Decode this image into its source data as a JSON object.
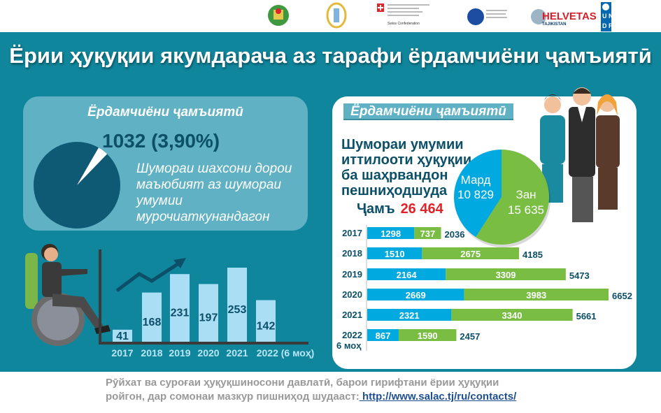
{
  "header": {
    "logos": [
      "tajikistan-emblem",
      "salac-emblem",
      "swiss-confederation",
      "finland-ministry",
      "helvetas",
      "undp"
    ],
    "helvetas_text": "HELVETAS",
    "helvetas_sub": "TAJIKISTAN",
    "undp_text": "UNDP",
    "swiss_text": "Swiss Confederation"
  },
  "title": "Ёрии ҳуқуқии якумдарача аз тарафи ёрдамчиёни ҷамъиятӣ",
  "left_panel": {
    "heading": "Ёрдамчиёни ҷамъиятӣ",
    "value": "1032 (3,90%)",
    "description": "Шумораи шахсони дорои маъюбият аз шумораи умумии мурочиаткунандагон",
    "share_percent": 3.9
  },
  "right_panel": {
    "heading": "Ёрдамчиёни ҷамъиятӣ",
    "description": "Шумораи умумии иттилооти ҳуқуқии ба шаҳрвандон пешниҳодшуда",
    "total_label": "Ҷамъ",
    "total_value": "26 464"
  },
  "chart_data": [
    {
      "type": "bar",
      "categories": [
        "2017",
        "2018",
        "2019",
        "2020",
        "2021",
        "2022 (6 моҳ)"
      ],
      "values": [
        41,
        168,
        231,
        197,
        253,
        142
      ],
      "colors": {
        "bar": "#a9def5",
        "label": "#0b4f68",
        "axis": "#3a3a3a",
        "tick": "#b8e6f7"
      }
    },
    {
      "type": "pie",
      "slices": [
        {
          "label": "Мард",
          "value_text": "10 829",
          "value": 10829,
          "color": "#00a9e0"
        },
        {
          "label": "Зан",
          "value_text": "15 635",
          "value": 15635,
          "color": "#79bd43"
        }
      ]
    },
    {
      "type": "bar",
      "orientation": "horizontal",
      "stacked": true,
      "categories": [
        "2017",
        "2018",
        "2019",
        "2020",
        "2021",
        "2022"
      ],
      "category_note": "6 моҳ",
      "series": [
        {
          "values": [
            1298,
            1510,
            2164,
            2669,
            2321,
            867
          ],
          "color": "#00a9e0"
        },
        {
          "values": [
            737,
            2675,
            3309,
            3983,
            3340,
            1590
          ],
          "color": "#79bd43"
        }
      ],
      "totals": [
        2036,
        4185,
        5473,
        6652,
        5661,
        2457
      ]
    }
  ],
  "footer": {
    "text_line1": "Рӯйхат ва суроғаи ҳуқуқшиносони давлатӣ, барои гирифтани ёрии ҳуқуқии",
    "text_line2": "ройгон, дар сомонаи мазкур пишниҳод шудааст:",
    "link": " http://www.salac.tj/ru/contacts/"
  }
}
